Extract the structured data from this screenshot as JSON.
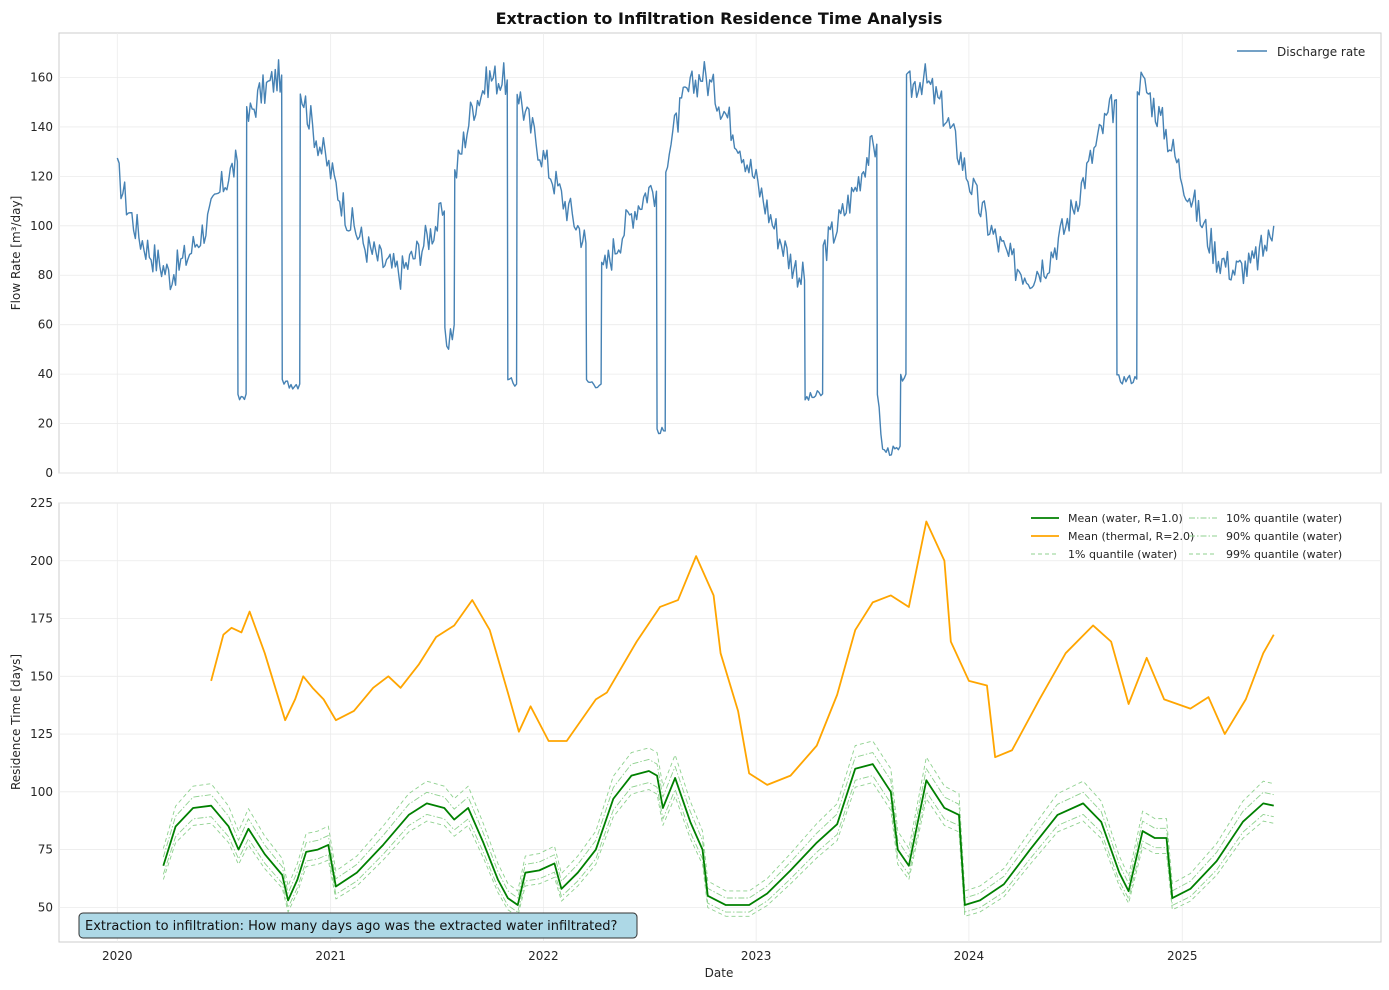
{
  "chart_data": [
    {
      "type": "line",
      "title": "Extraction to Infiltration Residence Time Analysis",
      "xlabel": "",
      "ylabel": "Flow Rate [m³/day]",
      "xlim": [
        "2019-09-23",
        "2025-12-08"
      ],
      "ylim": [
        0,
        178
      ],
      "grid": true,
      "legend_position": "top-right",
      "x_ticks": [
        "2020",
        "2021",
        "2022",
        "2023",
        "2024",
        "2025"
      ],
      "y_ticks": [
        "0",
        "20",
        "40",
        "60",
        "80",
        "100",
        "120",
        "140",
        "160"
      ],
      "series": [
        {
          "name": "Discharge rate",
          "color": "#4682b4",
          "points": [
            [
              "2020-01-01",
              122
            ],
            [
              "2020-01-20",
              107
            ],
            [
              "2020-02-10",
              95
            ],
            [
              "2020-03-05",
              87
            ],
            [
              "2020-04-01",
              80
            ],
            [
              "2020-05-01",
              88
            ],
            [
              "2020-06-01",
              100
            ],
            [
              "2020-07-01",
              117
            ],
            [
              "2020-07-25",
              126
            ],
            [
              "2020-07-26",
              30
            ],
            [
              "2020-08-09",
              32
            ],
            [
              "2020-08-10",
              142
            ],
            [
              "2020-09-01",
              153
            ],
            [
              "2020-10-01",
              160
            ],
            [
              "2020-10-09",
              161
            ],
            [
              "2020-10-10",
              36
            ],
            [
              "2020-11-09",
              36
            ],
            [
              "2020-11-10",
              156
            ],
            [
              "2020-12-01",
              140
            ],
            [
              "2021-01-01",
              122
            ],
            [
              "2021-02-01",
              103
            ],
            [
              "2021-03-01",
              92
            ],
            [
              "2021-04-01",
              85
            ],
            [
              "2021-05-01",
              81
            ],
            [
              "2021-06-01",
              90
            ],
            [
              "2021-06-30",
              100
            ],
            [
              "2021-07-15",
              106
            ],
            [
              "2021-07-16",
              52
            ],
            [
              "2021-08-01",
              60
            ],
            [
              "2021-08-02",
              120
            ],
            [
              "2021-09-01",
              148
            ],
            [
              "2021-10-01",
              160
            ],
            [
              "2021-10-31",
              159
            ],
            [
              "2021-11-01",
              37
            ],
            [
              "2021-11-16",
              36
            ],
            [
              "2021-11-17",
              156
            ],
            [
              "2021-12-01",
              145
            ],
            [
              "2022-01-01",
              128
            ],
            [
              "2022-02-01",
              112
            ],
            [
              "2022-03-01",
              100
            ],
            [
              "2022-03-15",
              93
            ],
            [
              "2022-03-16",
              37
            ],
            [
              "2022-04-10",
              36
            ],
            [
              "2022-04-11",
              80
            ],
            [
              "2022-05-01",
              90
            ],
            [
              "2022-06-01",
              105
            ],
            [
              "2022-07-01",
              115
            ],
            [
              "2022-07-14",
              114
            ],
            [
              "2022-07-15",
              16
            ],
            [
              "2022-07-29",
              17
            ],
            [
              "2022-07-30",
              128
            ],
            [
              "2022-09-01",
              152
            ],
            [
              "2022-10-01",
              162
            ],
            [
              "2022-11-01",
              150
            ],
            [
              "2022-12-01",
              135
            ],
            [
              "2023-01-01",
              118
            ],
            [
              "2023-02-01",
              100
            ],
            [
              "2023-03-01",
              86
            ],
            [
              "2023-03-25",
              78
            ],
            [
              "2023-03-26",
              30
            ],
            [
              "2023-04-25",
              32
            ],
            [
              "2023-04-26",
              90
            ],
            [
              "2023-05-20",
              100
            ],
            [
              "2023-06-20",
              115
            ],
            [
              "2023-07-10",
              128
            ],
            [
              "2023-07-27",
              133
            ],
            [
              "2023-07-28",
              33
            ],
            [
              "2023-08-06",
              9
            ],
            [
              "2023-09-05",
              9
            ],
            [
              "2023-09-06",
              38
            ],
            [
              "2023-09-15",
              40
            ],
            [
              "2023-09-16",
              155
            ],
            [
              "2023-10-15",
              160
            ],
            [
              "2023-11-15",
              148
            ],
            [
              "2023-12-15",
              130
            ],
            [
              "2024-01-15",
              110
            ],
            [
              "2024-02-15",
              95
            ],
            [
              "2024-03-15",
              85
            ],
            [
              "2024-04-15",
              80
            ],
            [
              "2024-05-15",
              86
            ],
            [
              "2024-06-15",
              100
            ],
            [
              "2024-07-15",
              118
            ],
            [
              "2024-08-15",
              138
            ],
            [
              "2024-09-10",
              151
            ],
            [
              "2024-09-11",
              38
            ],
            [
              "2024-10-15",
              38
            ],
            [
              "2024-10-16",
              160
            ],
            [
              "2024-11-01",
              155
            ],
            [
              "2024-12-01",
              140
            ],
            [
              "2025-01-01",
              120
            ],
            [
              "2025-02-01",
              103
            ],
            [
              "2025-03-01",
              88
            ],
            [
              "2025-04-01",
              82
            ],
            [
              "2025-05-01",
              84
            ],
            [
              "2025-06-01",
              95
            ],
            [
              "2025-06-07",
              100
            ]
          ]
        }
      ]
    },
    {
      "type": "line",
      "title": "",
      "xlabel": "Date",
      "ylabel": "Residence Time [days]",
      "xlim": [
        "2019-09-23",
        "2025-12-08"
      ],
      "ylim": [
        35,
        225
      ],
      "grid": true,
      "legend_position": "top-right",
      "x_ticks": [
        "2020",
        "2021",
        "2022",
        "2023",
        "2024",
        "2025"
      ],
      "y_ticks": [
        "50",
        "75",
        "100",
        "125",
        "150",
        "175",
        "200",
        "225"
      ],
      "annotation": "Extraction to infiltration: How many days ago was the extracted water infiltrated?",
      "series": [
        {
          "name": "Mean (water, R=1.0)",
          "color": "#008000",
          "style": "solid",
          "points": [
            [
              "2020-03-20",
              68
            ],
            [
              "2020-04-10",
              85
            ],
            [
              "2020-05-10",
              93
            ],
            [
              "2020-06-10",
              94
            ],
            [
              "2020-07-10",
              85
            ],
            [
              "2020-07-27",
              75
            ],
            [
              "2020-08-13",
              84
            ],
            [
              "2020-09-10",
              73
            ],
            [
              "2020-10-10",
              64
            ],
            [
              "2020-10-20",
              53
            ],
            [
              "2020-11-05",
              62
            ],
            [
              "2020-11-20",
              74
            ],
            [
              "2020-12-10",
              75
            ],
            [
              "2020-12-28",
              77
            ],
            [
              "2021-01-10",
              59
            ],
            [
              "2021-02-15",
              65
            ],
            [
              "2021-04-01",
              77
            ],
            [
              "2021-05-15",
              90
            ],
            [
              "2021-06-15",
              95
            ],
            [
              "2021-07-15",
              93
            ],
            [
              "2021-08-01",
              88
            ],
            [
              "2021-08-25",
              93
            ],
            [
              "2021-09-20",
              78
            ],
            [
              "2021-10-15",
              62
            ],
            [
              "2021-11-01",
              54
            ],
            [
              "2021-11-18",
              51
            ],
            [
              "2021-12-01",
              65
            ],
            [
              "2021-12-25",
              66
            ],
            [
              "2022-01-20",
              69
            ],
            [
              "2022-02-01",
              58
            ],
            [
              "2022-03-01",
              65
            ],
            [
              "2022-04-01",
              75
            ],
            [
              "2022-05-01",
              97
            ],
            [
              "2022-06-01",
              107
            ],
            [
              "2022-07-01",
              109
            ],
            [
              "2022-07-15",
              107
            ],
            [
              "2022-07-25",
              93
            ],
            [
              "2022-08-15",
              106
            ],
            [
              "2022-09-10",
              87
            ],
            [
              "2022-10-01",
              75
            ],
            [
              "2022-10-10",
              55
            ],
            [
              "2022-11-10",
              51
            ],
            [
              "2022-12-20",
              51
            ],
            [
              "2023-01-20",
              56
            ],
            [
              "2023-03-01",
              66
            ],
            [
              "2023-04-15",
              78
            ],
            [
              "2023-05-20",
              86
            ],
            [
              "2023-06-20",
              110
            ],
            [
              "2023-07-20",
              112
            ],
            [
              "2023-08-20",
              100
            ],
            [
              "2023-09-01",
              75
            ],
            [
              "2023-09-20",
              68
            ],
            [
              "2023-10-20",
              105
            ],
            [
              "2023-11-20",
              93
            ],
            [
              "2023-12-15",
              90
            ],
            [
              "2023-12-25",
              51
            ],
            [
              "2024-01-20",
              53
            ],
            [
              "2024-03-01",
              60
            ],
            [
              "2024-04-15",
              75
            ],
            [
              "2024-06-01",
              90
            ],
            [
              "2024-07-15",
              95
            ],
            [
              "2024-08-15",
              87
            ],
            [
              "2024-09-15",
              65
            ],
            [
              "2024-10-01",
              57
            ],
            [
              "2024-10-25",
              83
            ],
            [
              "2024-11-15",
              80
            ],
            [
              "2024-12-05",
              80
            ],
            [
              "2024-12-15",
              54
            ],
            [
              "2025-01-15",
              58
            ],
            [
              "2025-03-01",
              70
            ],
            [
              "2025-04-15",
              87
            ],
            [
              "2025-05-20",
              95
            ],
            [
              "2025-06-07",
              94
            ]
          ]
        },
        {
          "name": "Mean (thermal, R=2.0)",
          "color": "#ffa500",
          "style": "solid",
          "points": [
            [
              "2020-06-10",
              148
            ],
            [
              "2020-07-01",
              168
            ],
            [
              "2020-07-15",
              171
            ],
            [
              "2020-08-01",
              169
            ],
            [
              "2020-08-15",
              178
            ],
            [
              "2020-09-10",
              160
            ],
            [
              "2020-10-15",
              131
            ],
            [
              "2020-11-01",
              140
            ],
            [
              "2020-11-15",
              150
            ],
            [
              "2020-12-01",
              145
            ],
            [
              "2020-12-20",
              140
            ],
            [
              "2021-01-10",
              131
            ],
            [
              "2021-02-10",
              135
            ],
            [
              "2021-03-15",
              145
            ],
            [
              "2021-04-10",
              150
            ],
            [
              "2021-05-01",
              145
            ],
            [
              "2021-06-01",
              155
            ],
            [
              "2021-07-01",
              167
            ],
            [
              "2021-08-01",
              172
            ],
            [
              "2021-09-01",
              183
            ],
            [
              "2021-10-01",
              170
            ],
            [
              "2021-11-01",
              143
            ],
            [
              "2021-11-20",
              126
            ],
            [
              "2021-12-10",
              137
            ],
            [
              "2022-01-10",
              122
            ],
            [
              "2022-02-10",
              122
            ],
            [
              "2022-04-01",
              140
            ],
            [
              "2022-04-20",
              143
            ],
            [
              "2022-06-10",
              165
            ],
            [
              "2022-07-20",
              180
            ],
            [
              "2022-08-20",
              183
            ],
            [
              "2022-09-20",
              202
            ],
            [
              "2022-10-20",
              185
            ],
            [
              "2022-11-01",
              160
            ],
            [
              "2022-12-01",
              135
            ],
            [
              "2022-12-20",
              108
            ],
            [
              "2023-01-20",
              103
            ],
            [
              "2023-03-01",
              107
            ],
            [
              "2023-04-15",
              120
            ],
            [
              "2023-05-20",
              142
            ],
            [
              "2023-06-20",
              170
            ],
            [
              "2023-07-20",
              182
            ],
            [
              "2023-08-20",
              185
            ],
            [
              "2023-09-20",
              180
            ],
            [
              "2023-10-20",
              217
            ],
            [
              "2023-11-20",
              200
            ],
            [
              "2023-12-01",
              165
            ],
            [
              "2024-01-01",
              148
            ],
            [
              "2024-02-01",
              146
            ],
            [
              "2024-02-15",
              115
            ],
            [
              "2024-03-15",
              118
            ],
            [
              "2024-05-01",
              140
            ],
            [
              "2024-06-15",
              160
            ],
            [
              "2024-08-01",
              172
            ],
            [
              "2024-09-01",
              165
            ],
            [
              "2024-10-01",
              138
            ],
            [
              "2024-11-01",
              158
            ],
            [
              "2024-12-01",
              140
            ],
            [
              "2025-01-15",
              136
            ],
            [
              "2025-02-15",
              141
            ],
            [
              "2025-03-15",
              125
            ],
            [
              "2025-04-20",
              140
            ],
            [
              "2025-05-20",
              160
            ],
            [
              "2025-06-07",
              168
            ]
          ]
        },
        {
          "name": "1% quantile (water)",
          "color": "#8fd18f",
          "style": "dashed",
          "offset_from": "Mean (water, R=1.0)",
          "offset": -8
        },
        {
          "name": "10% quantile (water)",
          "color": "#8fd18f",
          "style": "dashdot",
          "offset_from": "Mean (water, R=1.0)",
          "offset": -5
        },
        {
          "name": "90% quantile (water)",
          "color": "#8fd18f",
          "style": "dashdot",
          "offset_from": "Mean (water, R=1.0)",
          "offset": 5
        },
        {
          "name": "99% quantile (water)",
          "color": "#8fd18f",
          "style": "dashed",
          "offset_from": "Mean (water, R=1.0)",
          "offset": 10
        }
      ]
    }
  ]
}
